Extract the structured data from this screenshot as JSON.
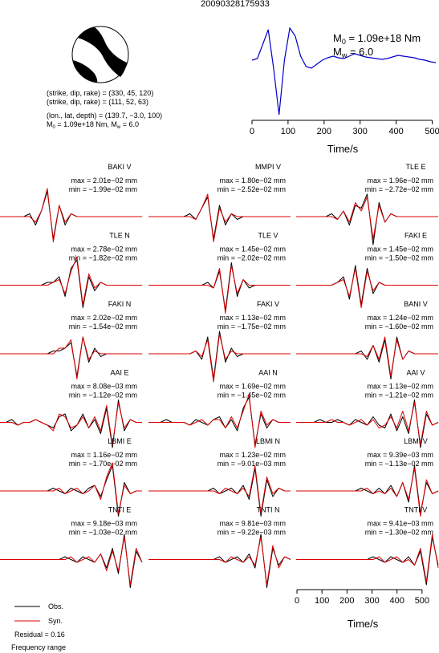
{
  "title": "20090328175933",
  "mechanism": {
    "lines": [
      "(strike, dip, rake) = (330, 45, 120)",
      "(strike, dip, rake) = (111, 52, 63)",
      "(lon., lat, depth) = (139.7, −3.0, 100)"
    ],
    "moment": {
      "m": "M",
      "m_sub": "0",
      "m_text": " = 1.09e+18 Nm, ",
      "w": "M",
      "w_sub": "w",
      "w_text": " = 6.0"
    }
  },
  "stf": {
    "type": "line",
    "m0": {
      "symbol": "M",
      "sub": "0",
      "text": " = 1.09e+18 Nm"
    },
    "mw": {
      "symbol": "M",
      "sub": "w",
      "text": " = 6.0"
    },
    "xlabel": "Time/s",
    "color": "#0000cc",
    "xlim": [
      0,
      510
    ],
    "xticks": [
      0,
      100,
      200,
      300,
      400,
      500
    ],
    "ylim": [
      -72,
      45
    ],
    "x": [
      0,
      15,
      30,
      45,
      60,
      75,
      90,
      105,
      120,
      135,
      150,
      165,
      180,
      195,
      210,
      225,
      240,
      255,
      270,
      285,
      300,
      315,
      330,
      345,
      360,
      375,
      390,
      405,
      420,
      435,
      450,
      465,
      480,
      495,
      510
    ],
    "values": [
      0,
      2,
      20,
      38,
      -10,
      -68,
      0,
      40,
      30,
      5,
      -8,
      -10,
      -5,
      0,
      3,
      5,
      3,
      2,
      5,
      8,
      6,
      4,
      3,
      2,
      1,
      2,
      4,
      6,
      5,
      4,
      3,
      1,
      0,
      -2,
      -3
    ]
  },
  "panels": [
    {
      "label": "BAKI V",
      "max": "max = 2.01e−02 mm",
      "min": "min = −1.99e−02 mm",
      "obs": [
        0,
        0,
        0,
        0,
        0,
        1,
        -3,
        2,
        9,
        -8,
        4,
        -3,
        1,
        0,
        0,
        0,
        0,
        0,
        0,
        0,
        0,
        0,
        0,
        0,
        0
      ],
      "syn": [
        0,
        0,
        0,
        0,
        0,
        0,
        -2,
        2,
        10,
        -9,
        4,
        -2,
        1,
        0,
        0,
        0,
        0,
        0,
        0,
        0,
        0,
        0,
        0,
        0,
        0
      ]
    },
    {
      "label": "MMPI V",
      "max": "max = 1.80e−02 mm",
      "min": "min = −2.52e−02 mm",
      "obs": [
        0,
        0,
        0,
        0,
        0,
        0,
        0,
        1,
        -1,
        3,
        7,
        -8,
        4,
        -3,
        1,
        -1,
        0,
        0,
        0,
        0,
        0,
        0,
        0,
        0,
        0
      ],
      "syn": [
        0,
        0,
        0,
        0,
        0,
        0,
        0,
        0,
        -1,
        3,
        8,
        -9,
        3,
        -2,
        1,
        0,
        0,
        0,
        0,
        0,
        0,
        0,
        0,
        0,
        0
      ]
    },
    {
      "label": "TLE E",
      "max": "max = 1.96e−02 mm",
      "min": "min = −2.72e−02 mm",
      "obs": [
        0,
        0,
        0,
        0,
        0,
        0,
        1,
        -1,
        2,
        -3,
        4,
        3,
        8,
        -10,
        5,
        -2,
        1,
        0,
        0,
        0,
        0,
        0,
        0,
        0,
        0
      ],
      "syn": [
        0,
        0,
        0,
        0,
        0,
        0,
        0,
        -1,
        2,
        -2,
        5,
        2,
        7,
        -8,
        4,
        -2,
        1,
        0,
        0,
        0,
        0,
        0,
        0,
        0,
        0
      ]
    },
    {
      "label": "TLE N",
      "max": "max = 2.78e−02 mm",
      "min": "min = −1.82e−02 mm",
      "obs": [
        0,
        0,
        0,
        0,
        0,
        0,
        0,
        0,
        1,
        1,
        3,
        -4,
        6,
        9,
        -8,
        3,
        -2,
        1,
        0,
        0,
        0,
        0,
        0,
        0,
        0
      ],
      "syn": [
        0,
        0,
        0,
        0,
        0,
        0,
        0,
        0,
        0,
        1,
        2,
        -3,
        5,
        10,
        -7,
        4,
        -1,
        1,
        0,
        0,
        0,
        0,
        0,
        0,
        0
      ]
    },
    {
      "label": "TLE V",
      "max": "max = 1.45e−02 mm",
      "min": "min = −2.02e−02 mm",
      "obs": [
        0,
        0,
        0,
        0,
        0,
        0,
        0,
        0,
        0,
        0,
        1,
        -1,
        5,
        -9,
        8,
        -4,
        2,
        -1,
        0,
        0,
        0,
        0,
        0,
        0,
        0
      ],
      "syn": [
        0,
        0,
        0,
        0,
        0,
        0,
        0,
        0,
        0,
        0,
        0,
        -1,
        6,
        -10,
        7,
        -3,
        2,
        0,
        0,
        0,
        0,
        0,
        0,
        0,
        0
      ]
    },
    {
      "label": "FAKI E",
      "max": "max = 1.45e−02 mm",
      "min": "min = −1.50e−02 mm",
      "obs": [
        0,
        0,
        0,
        0,
        0,
        0,
        0,
        1,
        3,
        -5,
        7,
        -7,
        6,
        -3,
        1,
        0,
        0,
        0,
        0,
        0,
        0,
        0,
        0,
        0,
        0
      ],
      "syn": [
        0,
        0,
        0,
        0,
        0,
        0,
        0,
        1,
        2,
        -4,
        6,
        -8,
        5,
        -2,
        1,
        0,
        0,
        0,
        0,
        0,
        0,
        0,
        0,
        0,
        0
      ]
    },
    {
      "label": "FAKI N",
      "max": "max = 2.02e−02 mm",
      "min": "min = −1.54e−02 mm",
      "obs": [
        0,
        0,
        0,
        0,
        0,
        0,
        0,
        0,
        0,
        1,
        1,
        2,
        4,
        -8,
        6,
        -3,
        2,
        -1,
        0,
        0,
        0,
        0,
        0,
        0,
        0
      ],
      "syn": [
        0,
        0,
        0,
        0,
        0,
        0,
        0,
        0,
        0,
        0,
        2,
        2,
        5,
        -9,
        6,
        -2,
        1,
        0,
        0,
        0,
        0,
        0,
        0,
        0,
        0
      ]
    },
    {
      "label": "FAKI V",
      "max": "max = 1.13e−02 mm",
      "min": "min = −1.75e−02 mm",
      "obs": [
        0,
        0,
        0,
        0,
        0,
        0,
        0,
        0,
        1,
        -2,
        6,
        -9,
        8,
        -3,
        2,
        -1,
        0,
        0,
        0,
        0,
        0,
        0,
        0,
        0,
        0
      ],
      "syn": [
        0,
        0,
        0,
        0,
        0,
        0,
        0,
        0,
        1,
        -1,
        5,
        -10,
        7,
        -2,
        1,
        0,
        0,
        0,
        0,
        0,
        0,
        0,
        0,
        0,
        0
      ]
    },
    {
      "label": "BANI V",
      "max": "max = 1.24e−02 mm",
      "min": "min = −1.60e−02 mm",
      "obs": [
        0,
        0,
        0,
        0,
        0,
        0,
        0,
        0,
        0,
        0,
        0,
        1,
        -2,
        3,
        -3,
        5,
        -9,
        6,
        -2,
        1,
        0,
        0,
        0,
        0,
        0
      ],
      "syn": [
        0,
        0,
        0,
        0,
        0,
        0,
        0,
        0,
        0,
        0,
        0,
        0,
        -1,
        3,
        -2,
        6,
        -8,
        5,
        -2,
        1,
        0,
        0,
        0,
        0,
        0
      ]
    },
    {
      "label": "AAI E",
      "max": "max = 8.08e−03 mm",
      "min": "min = −1.12e−02 mm",
      "obs": [
        0,
        0,
        1,
        -1,
        0,
        0,
        1,
        0,
        -1,
        -2,
        2,
        3,
        -3,
        -1,
        3,
        -2,
        1,
        -4,
        5,
        -9,
        8,
        -3,
        1,
        0,
        0
      ],
      "syn": [
        0,
        0,
        0,
        -1,
        0,
        0,
        1,
        0,
        -1,
        -3,
        3,
        2,
        -2,
        -1,
        2,
        -2,
        2,
        -3,
        6,
        -8,
        7,
        -2,
        1,
        0,
        0
      ]
    },
    {
      "label": "AAI N",
      "max": "max = 1.69e−02 mm",
      "min": "min = −1.45e−02 mm",
      "obs": [
        0,
        0,
        0,
        1,
        0,
        0,
        0,
        -1,
        1,
        0,
        -1,
        1,
        2,
        -2,
        1,
        -3,
        5,
        9,
        -8,
        3,
        -2,
        1,
        0,
        0,
        0
      ],
      "syn": [
        0,
        0,
        0,
        0,
        0,
        0,
        0,
        -1,
        0,
        1,
        -1,
        1,
        1,
        -2,
        2,
        -2,
        4,
        10,
        -9,
        4,
        -1,
        1,
        0,
        0,
        0
      ]
    },
    {
      "label": "AAI V",
      "max": "max = 1.13e−02 mm",
      "min": "min = −1.21e−02 mm",
      "obs": [
        0,
        0,
        0,
        0,
        1,
        0,
        0,
        1,
        0,
        -1,
        1,
        0,
        -1,
        2,
        -1,
        -2,
        3,
        -3,
        2,
        -4,
        8,
        -9,
        3,
        -1,
        0
      ],
      "syn": [
        0,
        0,
        0,
        0,
        0,
        0,
        1,
        0,
        0,
        -1,
        0,
        1,
        -1,
        1,
        -2,
        -1,
        2,
        -2,
        4,
        -3,
        7,
        -8,
        4,
        -1,
        0
      ]
    },
    {
      "label": "LBMI E",
      "max": "max = 1.16e−02 mm",
      "min": "min = −1.70e−02 mm",
      "obs": [
        0,
        0,
        0,
        0,
        0,
        0,
        0,
        0,
        0,
        1,
        0,
        -1,
        1,
        0,
        -1,
        1,
        2,
        -2,
        4,
        9,
        -9,
        3,
        -1,
        0,
        0
      ],
      "syn": [
        0,
        0,
        0,
        0,
        0,
        0,
        0,
        0,
        0,
        0,
        1,
        -1,
        0,
        1,
        -1,
        0,
        2,
        -3,
        5,
        10,
        -8,
        2,
        -1,
        0,
        0
      ]
    },
    {
      "label": "LBMI N",
      "max": "max = 1.23e−02 mm",
      "min": "min = −9.01e−03 mm",
      "obs": [
        0,
        0,
        0,
        0,
        0,
        0,
        0,
        0,
        0,
        0,
        0,
        1,
        -1,
        0,
        1,
        -1,
        2,
        -3,
        8,
        -9,
        4,
        -2,
        1,
        0,
        0
      ],
      "syn": [
        0,
        0,
        0,
        0,
        0,
        0,
        0,
        0,
        0,
        0,
        0,
        0,
        -1,
        1,
        0,
        -1,
        1,
        -2,
        9,
        -8,
        5,
        -1,
        1,
        0,
        0
      ]
    },
    {
      "label": "LBMI V",
      "max": "max = 9.39e−03 mm",
      "min": "min = −1.13e−02 mm",
      "obs": [
        0,
        0,
        0,
        0,
        0,
        0,
        0,
        0,
        0,
        0,
        0,
        1,
        0,
        -1,
        1,
        -1,
        2,
        -2,
        3,
        -4,
        9,
        -8,
        3,
        -1,
        0
      ],
      "syn": [
        0,
        0,
        0,
        0,
        0,
        0,
        0,
        0,
        0,
        0,
        0,
        0,
        1,
        -1,
        0,
        -1,
        1,
        -2,
        3,
        -3,
        8,
        -9,
        4,
        -1,
        0
      ]
    },
    {
      "label": "TNTI E",
      "max": "max = 9.18e−03 mm",
      "min": "min = −1.03e−02 mm",
      "obs": [
        0,
        0,
        0,
        0,
        0,
        0,
        0,
        0,
        0,
        0,
        0,
        1,
        0,
        -1,
        1,
        0,
        -1,
        2,
        -3,
        4,
        -5,
        9,
        -10,
        3,
        -1
      ],
      "syn": [
        0,
        0,
        0,
        0,
        0,
        0,
        0,
        0,
        0,
        0,
        0,
        0,
        1,
        -1,
        0,
        1,
        -1,
        2,
        -4,
        3,
        -4,
        8,
        -9,
        4,
        -1
      ]
    },
    {
      "label": "TNTI N",
      "max": "max = 9.81e−03 mm",
      "min": "min = −9.22e−03 mm",
      "obs": [
        0,
        0,
        0,
        0,
        0,
        0,
        0,
        0,
        0,
        0,
        0,
        0,
        1,
        -1,
        0,
        1,
        -1,
        2,
        -3,
        9,
        -10,
        4,
        -2,
        1,
        0
      ],
      "syn": [
        0,
        0,
        0,
        0,
        0,
        0,
        0,
        0,
        0,
        0,
        0,
        0,
        0,
        -1,
        1,
        0,
        -1,
        1,
        -2,
        8,
        -9,
        5,
        -3,
        1,
        0
      ]
    },
    {
      "label": "TNTI V",
      "max": "max = 9.41e−03 mm",
      "min": "min = −1.30e−02 mm",
      "obs": [
        0,
        0,
        0,
        0,
        0,
        0,
        0,
        0,
        0,
        0,
        0,
        0,
        0,
        1,
        0,
        -1,
        1,
        0,
        -1,
        1,
        -2,
        3,
        -9,
        8,
        -2
      ],
      "syn": [
        0,
        0,
        0,
        0,
        0,
        0,
        0,
        0,
        0,
        0,
        0,
        0,
        0,
        0,
        1,
        -1,
        0,
        1,
        -1,
        0,
        -2,
        4,
        -8,
        9,
        -3
      ]
    }
  ],
  "time_axis": {
    "xlabel": "Time/s",
    "xlim": [
      0,
      510
    ],
    "xticks": [
      0,
      100,
      200,
      300,
      400,
      500
    ]
  },
  "legend": {
    "obs": {
      "name": "Obs.",
      "color": "#000000"
    },
    "syn": {
      "name": "Syn.",
      "color": "#dd0000"
    },
    "residual": "Residual = 0.16",
    "frequency": "Frequency range"
  }
}
